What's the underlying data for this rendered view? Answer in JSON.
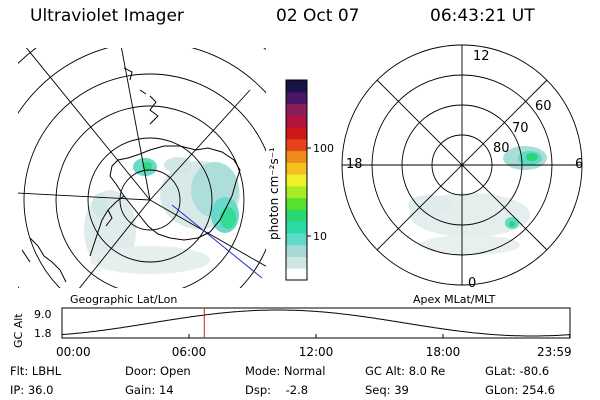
{
  "header": {
    "instrument": "Ultraviolet Imager",
    "date": "02 Oct 07",
    "time": "06:43:21 UT"
  },
  "colorbar": {
    "unit_label": "photon cm⁻²s⁻¹",
    "ticks": [
      "100",
      "10"
    ],
    "colors": [
      "#ffffff",
      "#cfe6e4",
      "#a9d9d6",
      "#5fd9c8",
      "#2bd9a6",
      "#27d873",
      "#59e02e",
      "#a8ec26",
      "#f0f026",
      "#f4c022",
      "#ef8a1c",
      "#e5441a",
      "#cc1818",
      "#b0143c",
      "#8a1e5a",
      "#4c1466",
      "#1a1244"
    ]
  },
  "geo_panel": {
    "label": "Geographic Lat/Lon"
  },
  "apex_panel": {
    "label": "Apex MLat/MLT",
    "mlt_labels": {
      "top": "12",
      "left": "18",
      "right": "6",
      "bottom": "0"
    },
    "lat_labels": [
      "60",
      "70",
      "80"
    ]
  },
  "altitude_strip": {
    "ylabel": "GC Alt",
    "yticks": [
      "9.0",
      "1.8"
    ],
    "xticks": [
      "00:00",
      "06:00",
      "12:00",
      "18:00",
      "23:59"
    ],
    "current_time_marker": "06:43:21",
    "marker_color": "#cc2222"
  },
  "info": {
    "filter": "Flt: LBHL",
    "ip": "IP: 36.0",
    "door": "Door: Open",
    "gain": "Gain: 14",
    "mode": "Mode: Normal",
    "dsp": "Dsp:    -2.8",
    "gc_alt": "GC Alt: 8.0 Re",
    "seq": "Seq: 39",
    "glat": "GLat: -80.6",
    "glon": "GLon: 254.6"
  }
}
